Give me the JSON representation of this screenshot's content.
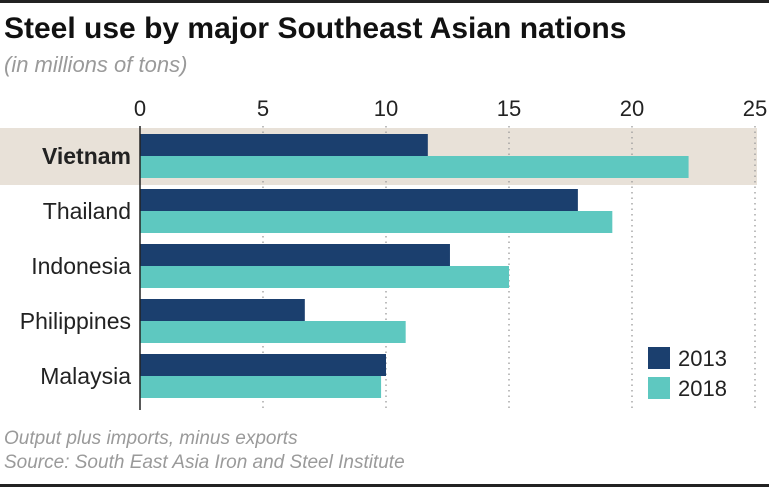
{
  "header": {
    "title": "Steel use by major Southeast Asian nations",
    "subtitle": "(in millions of tons)"
  },
  "footer": {
    "note": "Output plus imports, minus exports",
    "source": "Source: South East Asia Iron and Steel Institute"
  },
  "colors": {
    "series_2013": "#1b3f6e",
    "series_2018": "#5ec8c0",
    "highlight_band": "#e8e1d8",
    "gridline": "#9a9a9a"
  },
  "chart_data": {
    "type": "bar",
    "orientation": "horizontal",
    "title": "Steel use by major Southeast Asian nations",
    "subtitle": "(in millions of tons)",
    "categories": [
      "Vietnam",
      "Thailand",
      "Indonesia",
      "Philippines",
      "Malaysia"
    ],
    "highlighted_category": "Vietnam",
    "series": [
      {
        "name": "2013",
        "values": [
          11.7,
          17.8,
          12.6,
          6.7,
          10.0
        ]
      },
      {
        "name": "2018",
        "values": [
          22.3,
          19.2,
          15.0,
          10.8,
          9.8
        ]
      }
    ],
    "xlim": [
      0,
      25
    ],
    "xticks": [
      0,
      5,
      10,
      15,
      20,
      25
    ],
    "grid": "dotted vertical",
    "legend_position": "bottom-right"
  }
}
